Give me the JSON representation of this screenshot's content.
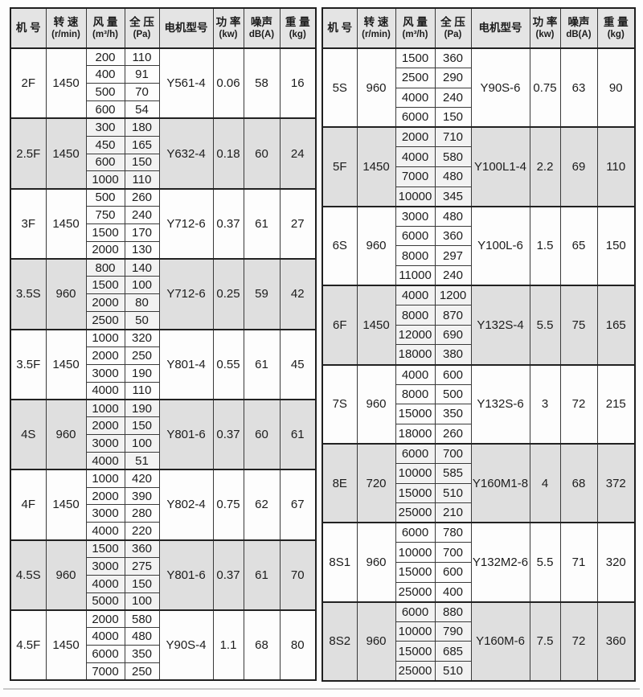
{
  "colors": {
    "page_bg": "#fdfdfd",
    "header_bg": "#e4e4e4",
    "shaded_row_bg": "#dfdfdf",
    "shaded_subcell_bg": "#f2f2f2",
    "border_dark": "#1f1f1f",
    "text": "#1c1c1c"
  },
  "columns": [
    {
      "key": "model",
      "label": "机 号",
      "unit": ""
    },
    {
      "key": "speed",
      "label": "转 速",
      "unit": "(r/min)"
    },
    {
      "key": "flow",
      "label": "风 量",
      "unit": "(m³/h)"
    },
    {
      "key": "pressure",
      "label": "全 压",
      "unit": "(Pa)"
    },
    {
      "key": "motor",
      "label": "电机型号",
      "unit": ""
    },
    {
      "key": "power",
      "label": "功 率",
      "unit": "(kw)"
    },
    {
      "key": "noise",
      "label": "噪声",
      "unit": "dB(A)"
    },
    {
      "key": "weight",
      "label": "重 量",
      "unit": "(kg)"
    }
  ],
  "chart_data": {
    "type": "table",
    "note": "Fan specification table: two side-by-side tables sharing the same columns"
  },
  "tables": [
    {
      "name": "left",
      "rows": [
        {
          "model": "2F",
          "speed": "1450",
          "points": [
            [
              "200",
              "110"
            ],
            [
              "400",
              "91"
            ],
            [
              "500",
              "70"
            ],
            [
              "600",
              "54"
            ]
          ],
          "motor": "Y561-4",
          "power": "0.06",
          "noise": "58",
          "weight": "16"
        },
        {
          "model": "2.5F",
          "speed": "1450",
          "points": [
            [
              "300",
              "180"
            ],
            [
              "450",
              "165"
            ],
            [
              "600",
              "150"
            ],
            [
              "1000",
              "110"
            ]
          ],
          "motor": "Y632-4",
          "power": "0.18",
          "noise": "60",
          "weight": "24"
        },
        {
          "model": "3F",
          "speed": "1450",
          "points": [
            [
              "500",
              "260"
            ],
            [
              "750",
              "240"
            ],
            [
              "1500",
              "170"
            ],
            [
              "2000",
              "130"
            ]
          ],
          "motor": "Y712-6",
          "power": "0.37",
          "noise": "61",
          "weight": "27"
        },
        {
          "model": "3.5S",
          "speed": "960",
          "points": [
            [
              "800",
              "140"
            ],
            [
              "1500",
              "100"
            ],
            [
              "2000",
              "80"
            ],
            [
              "2500",
              "50"
            ]
          ],
          "motor": "Y712-6",
          "power": "0.25",
          "noise": "59",
          "weight": "42"
        },
        {
          "model": "3.5F",
          "speed": "1450",
          "points": [
            [
              "1000",
              "320"
            ],
            [
              "2000",
              "250"
            ],
            [
              "3000",
              "190"
            ],
            [
              "4000",
              "110"
            ]
          ],
          "motor": "Y801-4",
          "power": "0.55",
          "noise": "61",
          "weight": "45"
        },
        {
          "model": "4S",
          "speed": "960",
          "points": [
            [
              "1000",
              "190"
            ],
            [
              "2000",
              "150"
            ],
            [
              "3000",
              "100"
            ],
            [
              "4000",
              "51"
            ]
          ],
          "motor": "Y801-6",
          "power": "0.37",
          "noise": "60",
          "weight": "61"
        },
        {
          "model": "4F",
          "speed": "1450",
          "points": [
            [
              "1000",
              "420"
            ],
            [
              "2000",
              "390"
            ],
            [
              "3000",
              "280"
            ],
            [
              "4000",
              "220"
            ]
          ],
          "motor": "Y802-4",
          "power": "0.75",
          "noise": "62",
          "weight": "67"
        },
        {
          "model": "4.5S",
          "speed": "960",
          "points": [
            [
              "1500",
              "360"
            ],
            [
              "3000",
              "275"
            ],
            [
              "4000",
              "150"
            ],
            [
              "5000",
              "100"
            ]
          ],
          "motor": "Y801-6",
          "power": "0.37",
          "noise": "61",
          "weight": "70"
        },
        {
          "model": "4.5F",
          "speed": "1450",
          "points": [
            [
              "2000",
              "580"
            ],
            [
              "4000",
              "480"
            ],
            [
              "6000",
              "350"
            ],
            [
              "7000",
              "250"
            ]
          ],
          "motor": "Y90S-4",
          "power": "1.1",
          "noise": "68",
          "weight": "80"
        }
      ]
    },
    {
      "name": "right",
      "rows": [
        {
          "model": "5S",
          "speed": "960",
          "points": [
            [
              "1500",
              "360"
            ],
            [
              "2500",
              "290"
            ],
            [
              "4000",
              "240"
            ],
            [
              "6000",
              "150"
            ]
          ],
          "motor": "Y90S-6",
          "power": "0.75",
          "noise": "63",
          "weight": "90"
        },
        {
          "model": "5F",
          "speed": "1450",
          "points": [
            [
              "2000",
              "710"
            ],
            [
              "4000",
              "580"
            ],
            [
              "7000",
              "480"
            ],
            [
              "10000",
              "345"
            ]
          ],
          "motor": "Y100L1-4",
          "power": "2.2",
          "noise": "69",
          "weight": "110"
        },
        {
          "model": "6S",
          "speed": "960",
          "points": [
            [
              "3000",
              "480"
            ],
            [
              "6000",
              "360"
            ],
            [
              "8000",
              "297"
            ],
            [
              "11000",
              "240"
            ]
          ],
          "motor": "Y100L-6",
          "power": "1.5",
          "noise": "65",
          "weight": "150"
        },
        {
          "model": "6F",
          "speed": "1450",
          "points": [
            [
              "4000",
              "1200"
            ],
            [
              "8000",
              "870"
            ],
            [
              "12000",
              "690"
            ],
            [
              "18000",
              "380"
            ]
          ],
          "motor": "Y132S-4",
          "power": "5.5",
          "noise": "75",
          "weight": "165"
        },
        {
          "model": "7S",
          "speed": "960",
          "points": [
            [
              "4000",
              "600"
            ],
            [
              "8000",
              "500"
            ],
            [
              "15000",
              "350"
            ],
            [
              "18000",
              "260"
            ]
          ],
          "motor": "Y132S-6",
          "power": "3",
          "noise": "72",
          "weight": "215"
        },
        {
          "model": "8E",
          "speed": "720",
          "points": [
            [
              "6000",
              "700"
            ],
            [
              "10000",
              "585"
            ],
            [
              "15000",
              "510"
            ],
            [
              "25000",
              "210"
            ]
          ],
          "motor": "Y160M1-8",
          "power": "4",
          "noise": "68",
          "weight": "372"
        },
        {
          "model": "8S1",
          "speed": "960",
          "points": [
            [
              "6000",
              "780"
            ],
            [
              "10000",
              "700"
            ],
            [
              "15000",
              "600"
            ],
            [
              "25000",
              "400"
            ]
          ],
          "motor": "Y132M2-6",
          "power": "5.5",
          "noise": "71",
          "weight": "320"
        },
        {
          "model": "8S2",
          "speed": "960",
          "points": [
            [
              "6000",
              "880"
            ],
            [
              "10000",
              "790"
            ],
            [
              "15000",
              "685"
            ],
            [
              "25000",
              "510"
            ]
          ],
          "motor": "Y160M-6",
          "power": "7.5",
          "noise": "72",
          "weight": "360"
        }
      ]
    }
  ]
}
